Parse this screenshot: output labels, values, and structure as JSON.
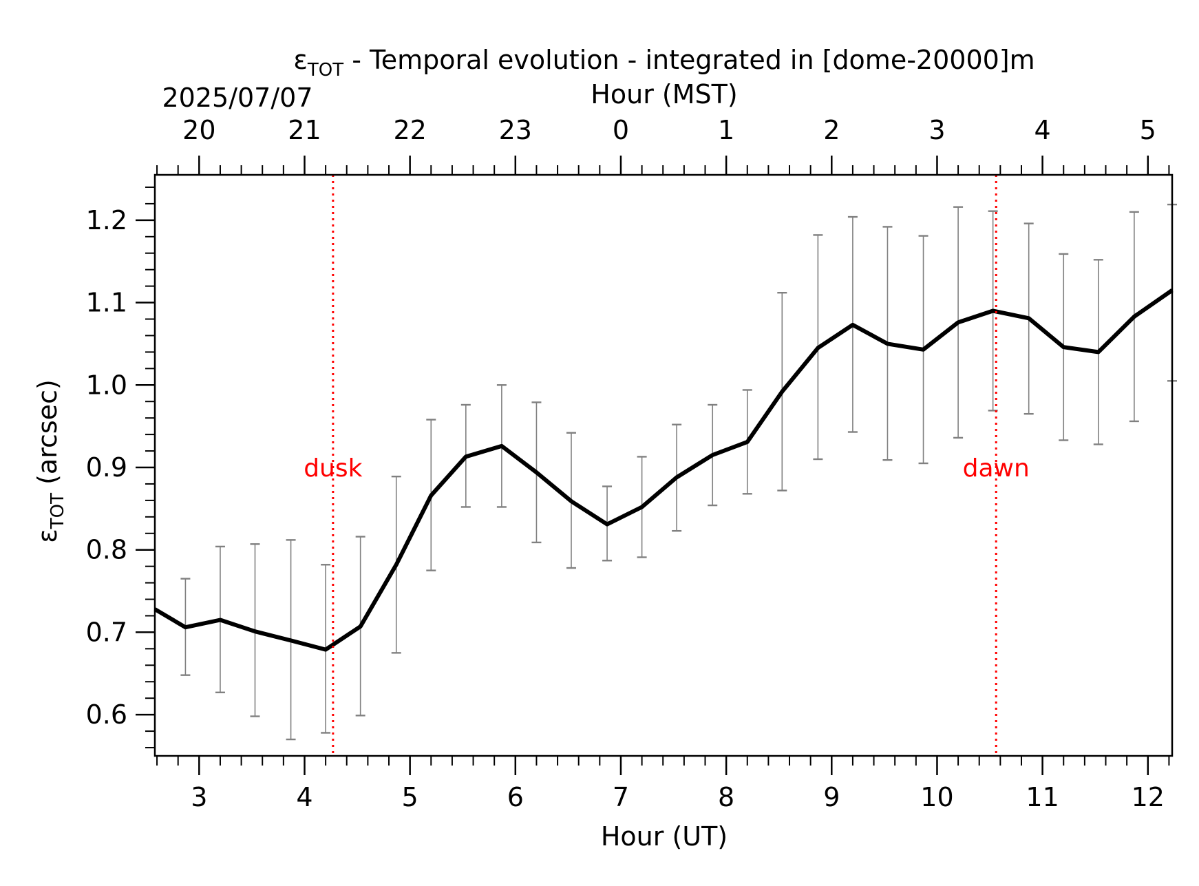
{
  "chart_data": {
    "type": "line",
    "title_parts": [
      "ε",
      "TOT",
      " - Temporal evolution - integrated in [dome-20000]m"
    ],
    "date_label": "2025/07/07",
    "top_axis_label": "Hour (MST)",
    "xlabel": "Hour (UT)",
    "ylabel_parts": [
      "ε",
      "TOT",
      " (arcsec)"
    ],
    "xlim": [
      2.58,
      12.23
    ],
    "ylim": [
      0.55,
      1.255
    ],
    "x_ticks": [
      3,
      4,
      5,
      6,
      7,
      8,
      9,
      10,
      11,
      12
    ],
    "x_tick_labels": [
      "3",
      "4",
      "5",
      "6",
      "7",
      "8",
      "9",
      "10",
      "11",
      "12"
    ],
    "y_ticks": [
      0.6,
      0.7,
      0.8,
      0.9,
      1.0,
      1.1,
      1.2
    ],
    "y_tick_labels": [
      "0.6",
      "0.7",
      "0.8",
      "0.9",
      "1.0",
      "1.1",
      "1.2"
    ],
    "top_ticks_ut": [
      3,
      4,
      5,
      6,
      7,
      8,
      9,
      10,
      11,
      12
    ],
    "top_tick_labels": [
      "20",
      "21",
      "22",
      "23",
      "0",
      "1",
      "2",
      "3",
      "4",
      "5"
    ],
    "grid": false,
    "series": [
      {
        "color": "#000000",
        "x": [
          2.58,
          2.87,
          3.2,
          3.53,
          3.87,
          4.2,
          4.53,
          4.87,
          5.2,
          5.53,
          5.87,
          6.2,
          6.53,
          6.87,
          7.2,
          7.53,
          7.87,
          8.2,
          8.53,
          8.87,
          9.2,
          9.53,
          9.87,
          10.2,
          10.53,
          10.87,
          11.2,
          11.53,
          11.87,
          12.23
        ],
        "y": [
          0.728,
          0.706,
          0.715,
          0.701,
          0.69,
          0.679,
          0.707,
          0.782,
          0.866,
          0.913,
          0.926,
          0.894,
          0.859,
          0.831,
          0.852,
          0.888,
          0.915,
          0.931,
          0.992,
          1.045,
          1.073,
          1.05,
          1.043,
          1.076,
          1.09,
          1.081,
          1.046,
          1.04,
          1.083,
          1.115
        ],
        "err_low": [
          null,
          0.648,
          0.627,
          0.598,
          0.57,
          0.578,
          0.599,
          0.675,
          0.775,
          0.852,
          0.852,
          0.809,
          0.778,
          0.787,
          0.791,
          0.823,
          0.854,
          0.868,
          0.872,
          0.91,
          0.943,
          0.909,
          0.905,
          0.936,
          0.969,
          0.965,
          0.933,
          0.928,
          0.956,
          1.005
        ],
        "err_high": [
          null,
          0.765,
          0.804,
          0.807,
          0.812,
          0.782,
          0.816,
          0.889,
          0.958,
          0.976,
          1.0,
          0.979,
          0.942,
          0.877,
          0.913,
          0.952,
          0.976,
          0.994,
          1.112,
          1.182,
          1.204,
          1.192,
          1.181,
          1.216,
          1.211,
          1.196,
          1.159,
          1.152,
          1.21,
          1.219
        ],
        "err_color": "#808080"
      }
    ],
    "markers": [
      {
        "x": 4.27,
        "label": "dusk",
        "label_y": 0.9,
        "color": "#ff0000"
      },
      {
        "x": 10.56,
        "label": "dawn",
        "label_y": 0.9,
        "color": "#ff0000"
      }
    ]
  }
}
